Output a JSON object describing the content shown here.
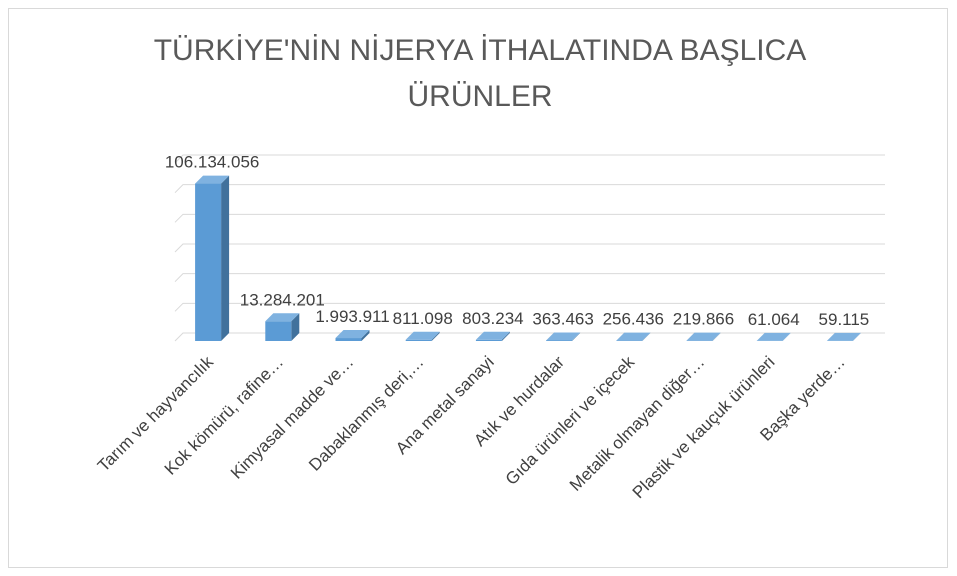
{
  "chart_data": {
    "type": "bar3d",
    "title": "TÜRKİYE'NİN NİJERYA İTHALATINDA BAŞLICA ÜRÜNLER",
    "categories": [
      "Tarım ve hayvancılık",
      "Kok kömürü, rafine…",
      "Kimyasal madde ve…",
      "Dabaklanmış deri,…",
      "Ana metal sanayi",
      "Atık ve hurdalar",
      "Gıda ürünleri ve içecek",
      "Metalik olmayan diğer…",
      "Plastik ve kauçuk ürünleri",
      "Başka yerde…"
    ],
    "values": [
      106134056,
      13284201,
      1993911,
      811098,
      803234,
      363463,
      256436,
      219866,
      61064,
      59115
    ],
    "value_labels": [
      "106.134.056",
      "13.284.201",
      "1.993.911",
      "811.098",
      "803.234",
      "363.463",
      "256.436",
      "219.866",
      "61.064",
      "59.115"
    ],
    "color": "#5b9bd5",
    "ylim": [
      0,
      120000000
    ],
    "yticks": [
      0,
      20000000,
      40000000,
      60000000,
      80000000,
      100000000,
      120000000
    ],
    "grid": true
  }
}
